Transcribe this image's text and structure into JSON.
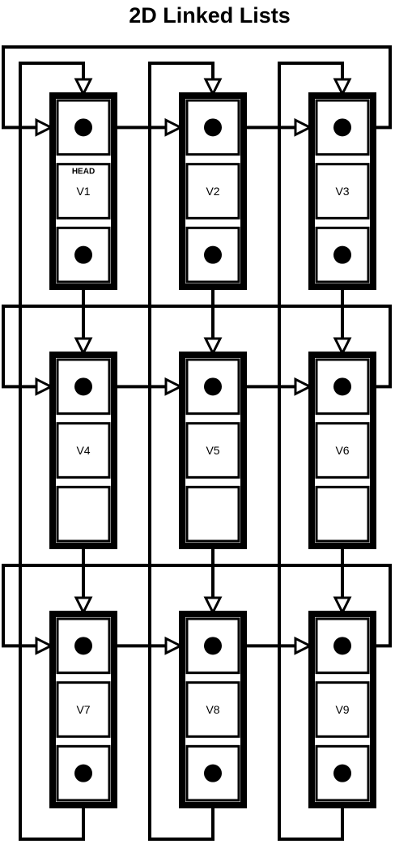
{
  "title": "2D Linked Lists",
  "head_label": "HEAD",
  "nodes": [
    {
      "label": "V1",
      "down_pointer": true
    },
    {
      "label": "V2",
      "down_pointer": true
    },
    {
      "label": "V3",
      "down_pointer": true
    },
    {
      "label": "V4",
      "down_pointer": false
    },
    {
      "label": "V5",
      "down_pointer": false
    },
    {
      "label": "V6",
      "down_pointer": false
    },
    {
      "label": "V7",
      "down_pointer": true
    },
    {
      "label": "V8",
      "down_pointer": true
    },
    {
      "label": "V9",
      "down_pointer": true
    }
  ],
  "colors": {
    "ink": "#000000",
    "background": "#ffffff"
  }
}
